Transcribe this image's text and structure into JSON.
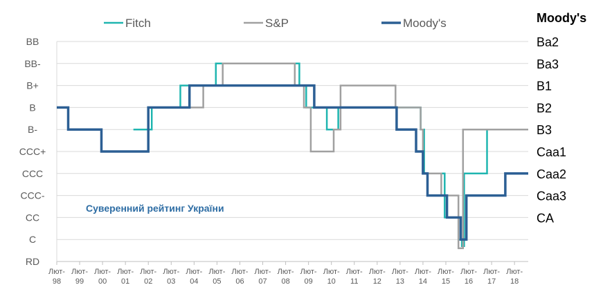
{
  "chart_data": {
    "type": "line",
    "step": true,
    "left_axis_categories": [
      "RD",
      "C",
      "CC",
      "CCC-",
      "CCC",
      "CCC+",
      "B-",
      "B",
      "B+",
      "BB-",
      "BB"
    ],
    "right_axis_title": "Moody's",
    "right_axis_categories": [
      "CA",
      "Caa3",
      "Caa2",
      "Caa1",
      "B3",
      "B2",
      "B1",
      "Ba3",
      "Ba2"
    ],
    "x_tick_labels": [
      [
        "Лют-",
        "98"
      ],
      [
        "Лют-",
        "99"
      ],
      [
        "Лют-",
        "00"
      ],
      [
        "Лют-",
        "01"
      ],
      [
        "Лют-",
        "02"
      ],
      [
        "Лют-",
        "03"
      ],
      [
        "Лют-",
        "04"
      ],
      [
        "Лют-",
        "05"
      ],
      [
        "Лют-",
        "06"
      ],
      [
        "Лют-",
        "07"
      ],
      [
        "Лют-",
        "08"
      ],
      [
        "Лют-",
        "09"
      ],
      [
        "Лют-",
        "10"
      ],
      [
        "Лют-",
        "11"
      ],
      [
        "Лют-",
        "12"
      ],
      [
        "Лют-",
        "13"
      ],
      [
        "Лют-",
        "14"
      ],
      [
        "Лют-",
        "15"
      ],
      [
        "Лют-",
        "16"
      ],
      [
        "Лют-",
        "17"
      ],
      [
        "Лют-",
        "18"
      ]
    ],
    "xlim": [
      1998.0,
      2018.6
    ],
    "ylim": [
      0,
      10
    ],
    "grid": true,
    "legend_placement": "top",
    "annotation": "Суверенний рейтинг України",
    "series": [
      {
        "name": "Fitch",
        "color": "#1FB5B0",
        "width": 2.5,
        "points": [
          [
            2001.35,
            6
          ],
          [
            2002.15,
            6
          ],
          [
            2002.15,
            7
          ],
          [
            2003.4,
            7
          ],
          [
            2003.4,
            8
          ],
          [
            2004.95,
            8
          ],
          [
            2004.95,
            9
          ],
          [
            2008.6,
            9
          ],
          [
            2008.6,
            8
          ],
          [
            2008.9,
            8
          ],
          [
            2008.9,
            7
          ],
          [
            2009.8,
            7
          ],
          [
            2009.8,
            6
          ],
          [
            2010.3,
            6
          ],
          [
            2010.3,
            7
          ],
          [
            2013.9,
            7
          ],
          [
            2013.9,
            6
          ],
          [
            2014.05,
            6
          ],
          [
            2014.05,
            4
          ],
          [
            2014.95,
            4
          ],
          [
            2014.95,
            2
          ],
          [
            2015.55,
            2
          ],
          [
            2015.55,
            1
          ],
          [
            2015.7,
            1
          ],
          [
            2015.7,
            0.7
          ],
          [
            2015.8,
            0.7
          ],
          [
            2015.8,
            4
          ],
          [
            2016.8,
            4
          ],
          [
            2016.8,
            6
          ],
          [
            2018.6,
            6
          ]
        ]
      },
      {
        "name": "S&P",
        "color": "#A0A0A0",
        "width": 2.5,
        "points": [
          [
            2001.95,
            7
          ],
          [
            2004.4,
            7
          ],
          [
            2004.4,
            8
          ],
          [
            2005.25,
            8
          ],
          [
            2005.25,
            9
          ],
          [
            2008.4,
            9
          ],
          [
            2008.4,
            8
          ],
          [
            2008.8,
            8
          ],
          [
            2008.8,
            7
          ],
          [
            2009.1,
            7
          ],
          [
            2009.1,
            5
          ],
          [
            2010.1,
            5
          ],
          [
            2010.1,
            6
          ],
          [
            2010.4,
            6
          ],
          [
            2010.4,
            8
          ],
          [
            2012.8,
            8
          ],
          [
            2012.8,
            7
          ],
          [
            2013.9,
            7
          ],
          [
            2013.9,
            6
          ],
          [
            2014.0,
            6
          ],
          [
            2014.0,
            4
          ],
          [
            2014.8,
            4
          ],
          [
            2014.8,
            3
          ],
          [
            2015.55,
            3
          ],
          [
            2015.55,
            0.6
          ],
          [
            2015.75,
            0.6
          ],
          [
            2015.75,
            6
          ],
          [
            2018.6,
            6
          ]
        ]
      },
      {
        "name": "Moody's",
        "color": "#2C5F94",
        "width": 3.5,
        "points": [
          [
            1998.0,
            7
          ],
          [
            1998.5,
            7
          ],
          [
            1998.5,
            6
          ],
          [
            1999.95,
            6
          ],
          [
            1999.95,
            5
          ],
          [
            2002.0,
            5
          ],
          [
            2002.0,
            7
          ],
          [
            2003.8,
            7
          ],
          [
            2003.8,
            8
          ],
          [
            2009.25,
            8
          ],
          [
            2009.25,
            7
          ],
          [
            2012.85,
            7
          ],
          [
            2012.85,
            6
          ],
          [
            2013.7,
            6
          ],
          [
            2013.7,
            5
          ],
          [
            2014.0,
            5
          ],
          [
            2014.0,
            4
          ],
          [
            2014.2,
            4
          ],
          [
            2014.2,
            3
          ],
          [
            2015.05,
            3
          ],
          [
            2015.05,
            2
          ],
          [
            2015.65,
            2
          ],
          [
            2015.65,
            1
          ],
          [
            2015.9,
            1
          ],
          [
            2015.9,
            3
          ],
          [
            2017.6,
            3
          ],
          [
            2017.6,
            4
          ],
          [
            2018.6,
            4
          ]
        ]
      }
    ]
  }
}
